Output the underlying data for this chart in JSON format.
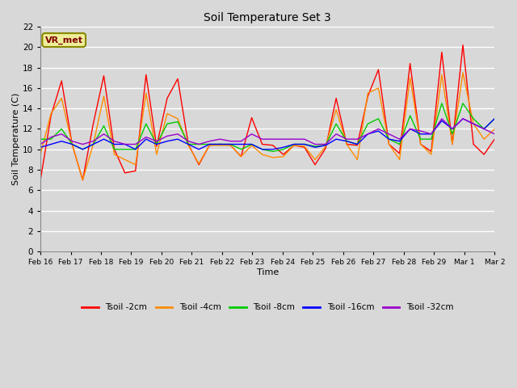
{
  "title": "Soil Temperature Set 3",
  "xlabel": "Time",
  "ylabel": "Soil Temperature (C)",
  "ylim": [
    0,
    22
  ],
  "yticks": [
    0,
    2,
    4,
    6,
    8,
    10,
    12,
    14,
    16,
    18,
    20,
    22
  ],
  "fig_facecolor": "#d8d8d8",
  "ax_facecolor": "#d8d8d8",
  "annotation_text": "VR_met",
  "annotation_bg": "#eeee99",
  "annotation_border": "#888800",
  "x_labels": [
    "Feb 16",
    "Feb 17",
    "Feb 18",
    "Feb 19",
    "Feb 20",
    "Feb 21",
    "Feb 22",
    "Feb 23",
    "Feb 24",
    "Feb 25",
    "Feb 26",
    "Feb 27",
    "Feb 28",
    "Feb 29",
    "Mar 1",
    "Mar 2"
  ],
  "series": {
    "Tsoil -2cm": {
      "color": "#ff0000",
      "values": [
        7.0,
        13.3,
        16.7,
        10.5,
        7.0,
        12.5,
        17.2,
        10.0,
        7.7,
        7.9,
        17.3,
        10.3,
        15.0,
        16.9,
        10.5,
        8.5,
        10.4,
        10.5,
        10.4,
        9.3,
        13.1,
        10.5,
        10.4,
        9.5,
        10.4,
        10.2,
        8.5,
        10.1,
        15.0,
        10.5,
        10.4,
        15.2,
        17.8,
        10.5,
        9.6,
        18.4,
        10.5,
        9.8,
        19.5,
        10.5,
        20.2,
        10.5,
        9.5,
        11.0
      ]
    },
    "Tsoil -4cm": {
      "color": "#ff8c00",
      "values": [
        9.5,
        13.5,
        15.0,
        10.5,
        7.0,
        10.5,
        15.2,
        9.5,
        9.0,
        8.5,
        15.5,
        9.5,
        13.5,
        13.0,
        10.4,
        8.6,
        10.4,
        10.4,
        10.4,
        9.3,
        10.4,
        9.5,
        9.2,
        9.3,
        10.4,
        10.3,
        9.0,
        10.3,
        13.9,
        10.5,
        9.0,
        15.5,
        16.0,
        10.5,
        9.0,
        17.0,
        10.5,
        9.5,
        17.3,
        10.5,
        17.5,
        12.5,
        11.0,
        12.0
      ]
    },
    "Tsoil -8cm": {
      "color": "#00cc00",
      "values": [
        11.0,
        11.0,
        12.0,
        10.5,
        10.0,
        10.5,
        12.3,
        10.0,
        10.0,
        10.0,
        12.5,
        10.5,
        12.5,
        12.7,
        10.5,
        10.5,
        10.5,
        10.5,
        10.5,
        10.0,
        10.5,
        10.0,
        9.8,
        10.0,
        10.5,
        10.5,
        10.3,
        10.4,
        12.5,
        10.8,
        10.5,
        12.5,
        13.0,
        11.0,
        10.5,
        13.3,
        11.0,
        11.0,
        14.5,
        11.5,
        14.5,
        13.0,
        12.0,
        13.0
      ]
    },
    "Tsoil -16cm": {
      "color": "#0000ff",
      "values": [
        10.2,
        10.5,
        10.8,
        10.5,
        10.0,
        10.5,
        11.0,
        10.5,
        10.5,
        10.0,
        11.0,
        10.5,
        10.8,
        11.0,
        10.5,
        10.0,
        10.5,
        10.5,
        10.5,
        10.5,
        10.5,
        10.0,
        10.0,
        10.2,
        10.5,
        10.5,
        10.2,
        10.4,
        11.0,
        10.8,
        10.5,
        11.5,
        11.8,
        11.0,
        10.8,
        12.0,
        11.5,
        11.5,
        12.8,
        12.0,
        13.0,
        12.5,
        12.0,
        13.0
      ]
    },
    "Tsoil -32cm": {
      "color": "#9900cc",
      "values": [
        10.5,
        11.2,
        11.5,
        10.8,
        10.5,
        10.8,
        11.5,
        10.8,
        10.5,
        10.5,
        11.2,
        10.8,
        11.3,
        11.5,
        10.8,
        10.5,
        10.8,
        11.0,
        10.8,
        10.8,
        11.5,
        11.0,
        11.0,
        11.0,
        11.0,
        11.0,
        10.5,
        10.5,
        11.5,
        11.0,
        11.0,
        11.5,
        12.0,
        11.5,
        11.0,
        12.0,
        11.8,
        11.5,
        13.0,
        12.0,
        13.0,
        12.5,
        12.0,
        11.5
      ]
    }
  }
}
